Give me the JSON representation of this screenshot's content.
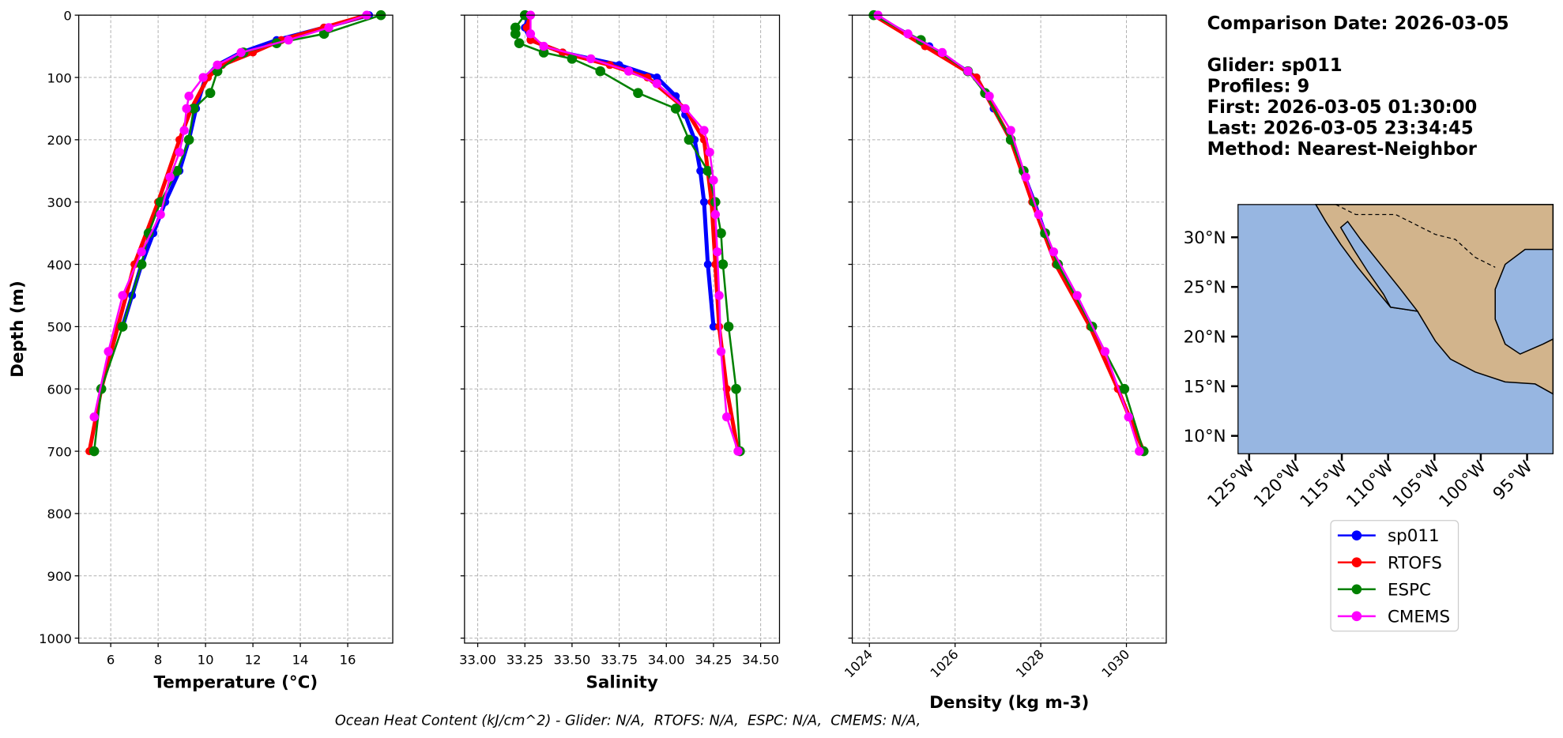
{
  "chart_data": [
    {
      "type": "line",
      "xlabel": "Temperature (°C)",
      "ylabel": "Depth (m)",
      "xlim": [
        4.65,
        17.9
      ],
      "ylim": [
        0,
        1008
      ],
      "invert_y": true,
      "grid": true,
      "show_ytick_labels": true,
      "xticks": [
        6,
        8,
        10,
        12,
        14,
        16
      ],
      "yticks": [
        0,
        100,
        200,
        300,
        400,
        500,
        600,
        700,
        800,
        900,
        1000
      ],
      "series": [
        {
          "name": "sp011",
          "color": "#0000ff",
          "x": [
            16.9,
            15,
            13,
            11.5,
            10.5,
            10,
            9.6,
            9.3,
            8.9,
            8.3,
            7.8,
            7.3,
            6.9,
            6.5
          ],
          "y": [
            0,
            20,
            40,
            60,
            80,
            100,
            150,
            200,
            250,
            300,
            350,
            400,
            450,
            500
          ]
        },
        {
          "name": "RTOFS",
          "color": "#ff0000",
          "x": [
            16.8,
            15,
            13.2,
            12,
            10.7,
            10.1,
            9.4,
            8.9,
            8.0,
            7.0,
            6.3,
            5.6,
            5.1
          ],
          "y": [
            0,
            20,
            40,
            60,
            80,
            100,
            150,
            200,
            300,
            400,
            500,
            600,
            700
          ]
        },
        {
          "name": "ESPC",
          "color": "#008000",
          "x": [
            17.4,
            15,
            13,
            11.6,
            10.5,
            10.2,
            9.5,
            9.3,
            8.8,
            8.1,
            7.6,
            7.3,
            6.5,
            5.6,
            5.3
          ],
          "y": [
            0,
            30,
            45,
            60,
            90,
            125,
            150,
            200,
            250,
            300,
            350,
            400,
            500,
            600,
            700
          ]
        },
        {
          "name": "CMEMS",
          "color": "#ff00ff",
          "x": [
            16.8,
            15.2,
            13.5,
            11.5,
            10.5,
            9.9,
            9.3,
            9.2,
            9.1,
            8.9,
            8.5,
            8.1,
            7.3,
            6.5,
            5.9,
            5.3
          ],
          "y": [
            0,
            20,
            40,
            60,
            80,
            100,
            130,
            150,
            185,
            220,
            260,
            320,
            380,
            450,
            540,
            645
          ]
        }
      ]
    },
    {
      "type": "line",
      "xlabel": "Salinity",
      "xlim": [
        32.93,
        34.6
      ],
      "ylim": [
        0,
        1008
      ],
      "invert_y": true,
      "grid": true,
      "show_ytick_labels": false,
      "xticks": [
        {
          "value": 33,
          "label": "33.00"
        },
        {
          "value": 33.25,
          "label": "33.25"
        },
        {
          "value": 33.5,
          "label": "33.50"
        },
        {
          "value": 33.75,
          "label": "33.75"
        },
        {
          "value": 34,
          "label": "34.00"
        },
        {
          "value": 34.25,
          "label": "34.25"
        },
        {
          "value": 34.5,
          "label": "34.50"
        }
      ],
      "yticks": [
        0,
        100,
        200,
        300,
        400,
        500,
        600,
        700,
        800,
        900,
        1000
      ],
      "series": [
        {
          "name": "sp011",
          "color": "#0000ff",
          "x": [
            33.27,
            33.25,
            33.28,
            33.45,
            33.75,
            33.95,
            34.05,
            34.1,
            34.15,
            34.18,
            34.2,
            34.22,
            34.25
          ],
          "y": [
            0,
            20,
            40,
            60,
            80,
            100,
            130,
            160,
            200,
            250,
            300,
            400,
            500
          ]
        },
        {
          "name": "RTOFS",
          "color": "#ff0000",
          "x": [
            33.28,
            33.26,
            33.28,
            33.45,
            33.7,
            33.9,
            34.1,
            34.2,
            34.24,
            34.26,
            34.28,
            34.32,
            34.38
          ],
          "y": [
            0,
            20,
            40,
            60,
            80,
            100,
            150,
            200,
            300,
            400,
            500,
            600,
            700
          ]
        },
        {
          "name": "ESPC",
          "color": "#008000",
          "x": [
            33.25,
            33.2,
            33.2,
            33.22,
            33.35,
            33.5,
            33.65,
            33.85,
            34.05,
            34.12,
            34.22,
            34.26,
            34.29,
            34.3,
            34.33,
            34.37,
            34.39
          ],
          "y": [
            0,
            20,
            30,
            45,
            60,
            70,
            90,
            125,
            150,
            200,
            250,
            300,
            350,
            400,
            500,
            600,
            700
          ]
        },
        {
          "name": "CMEMS",
          "color": "#ff00ff",
          "x": [
            33.28,
            33.28,
            33.35,
            33.6,
            33.8,
            33.95,
            34.1,
            34.2,
            34.23,
            34.25,
            34.26,
            34.27,
            34.28,
            34.29,
            34.32,
            34.38
          ],
          "y": [
            0,
            30,
            50,
            70,
            90,
            110,
            150,
            185,
            220,
            265,
            320,
            380,
            450,
            540,
            645,
            700
          ]
        }
      ]
    },
    {
      "type": "line",
      "xlabel": "Density (kg m-3)",
      "xlim": [
        1023.6,
        1030.93
      ],
      "ylim": [
        0,
        1008
      ],
      "invert_y": true,
      "grid": true,
      "show_ytick_labels": false,
      "xtick_rotation": 45,
      "xticks": [
        1024,
        1026,
        1028,
        1030
      ],
      "yticks": [
        0,
        100,
        200,
        300,
        400,
        500,
        600,
        700,
        800,
        900,
        1000
      ],
      "series": [
        {
          "name": "sp011",
          "color": "#0000ff",
          "x": [
            1024.1,
            1025.4,
            1026.5,
            1026.9,
            1027.3,
            1027.85,
            1028.35,
            1029.2
          ],
          "y": [
            0,
            50,
            100,
            150,
            200,
            300,
            400,
            500
          ]
        },
        {
          "name": "RTOFS",
          "color": "#ff0000",
          "x": [
            1024.1,
            1025.3,
            1026.5,
            1027.3,
            1027.8,
            1028.35,
            1029.15,
            1029.8,
            1030.4
          ],
          "y": [
            0,
            50,
            100,
            200,
            300,
            400,
            500,
            600,
            700
          ]
        },
        {
          "name": "ESPC",
          "color": "#008000",
          "x": [
            1024.1,
            1025.2,
            1026.3,
            1026.7,
            1027.3,
            1027.6,
            1027.85,
            1028.1,
            1028.4,
            1029.2,
            1029.95,
            1030.4
          ],
          "y": [
            0,
            40,
            90,
            125,
            200,
            250,
            300,
            350,
            400,
            500,
            600,
            700
          ]
        },
        {
          "name": "CMEMS",
          "color": "#ff00ff",
          "x": [
            1024.2,
            1024.9,
            1025.7,
            1026.3,
            1026.8,
            1027.3,
            1027.65,
            1027.95,
            1028.3,
            1028.85,
            1029.5,
            1030.05,
            1030.3
          ],
          "y": [
            0,
            30,
            60,
            90,
            130,
            185,
            260,
            320,
            380,
            450,
            540,
            645,
            700
          ]
        }
      ]
    }
  ],
  "info": {
    "comparison": "Comparison Date: 2026-03-05",
    "lines": [
      "Glider: sp011",
      "Profiles: 9",
      "First: 2026-03-05 01:30:00",
      "Last: 2026-03-05 23:34:45",
      "Method: Nearest-Neighbor"
    ]
  },
  "map": {
    "xlim": [
      -126.2,
      -92.2
    ],
    "ylim": [
      8.2,
      33.3
    ],
    "xtick_rotation": 45,
    "xticks": [
      {
        "value": -125,
        "label": "125°W"
      },
      {
        "value": -120,
        "label": "120°W"
      },
      {
        "value": -115,
        "label": "115°W"
      },
      {
        "value": -110,
        "label": "110°W"
      },
      {
        "value": -105,
        "label": "105°W"
      },
      {
        "value": -100,
        "label": "100°W"
      },
      {
        "value": -95,
        "label": "95°W"
      }
    ],
    "yticks": [
      {
        "value": 10,
        "label": "10°N"
      },
      {
        "value": 15,
        "label": "15°N"
      },
      {
        "value": 20,
        "label": "20°N"
      },
      {
        "value": 25,
        "label": "25°N"
      },
      {
        "value": 30,
        "label": "30°N"
      }
    ]
  },
  "footer": "Ocean Heat Content (kJ/cm^2) - Glider: N/A,  RTOFS: N/A,  ESPC: N/A,  CMEMS: N/A,"
}
